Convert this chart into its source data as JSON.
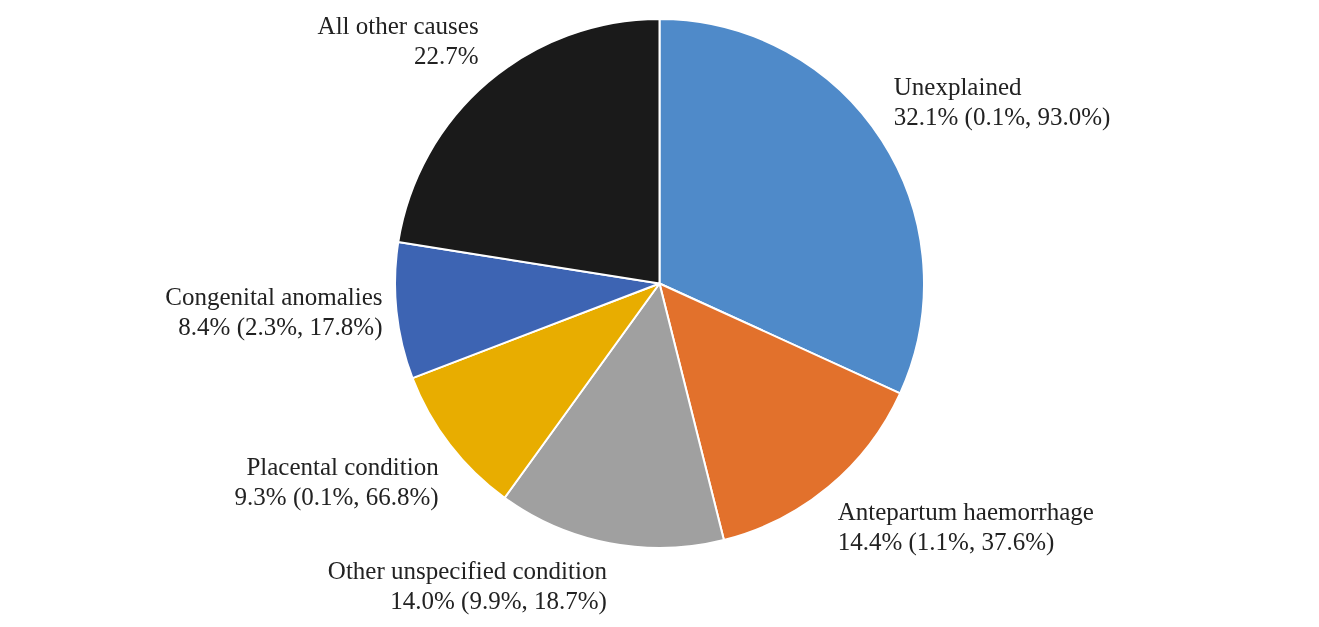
{
  "chart_data": {
    "type": "pie",
    "categories": [
      "Unexplained",
      "Antepartum haemorrhage",
      "Other unspecified condition",
      "Placental condition",
      "Congenital anomalies",
      "All other causes"
    ],
    "values": [
      32.1,
      14.4,
      14.0,
      9.3,
      8.4,
      22.7
    ],
    "value_labels": [
      "32.1% (0.1%, 93.0%)",
      "14.4% (1.1%, 37.6%)",
      "14.0% (9.9%, 18.7%)",
      "9.3% (0.1%, 66.8%)",
      "8.4% (2.3%, 17.8%)",
      "22.7%"
    ],
    "colors": [
      "#4f8ac9",
      "#e2712c",
      "#a0a0a0",
      "#e8ad00",
      "#3d64b3",
      "#1a1a1a"
    ],
    "legend": false
  }
}
